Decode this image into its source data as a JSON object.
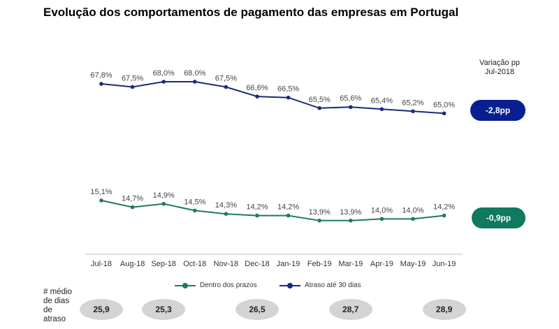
{
  "title": "Evolução dos comportamentos de pagamento das empresas em Portugal",
  "variacao": {
    "line1": "Variação pp",
    "line2": "Jul-2018"
  },
  "chart_data": {
    "type": "line",
    "categories": [
      "Jul-18",
      "Aug-18",
      "Sep-18",
      "Oct-18",
      "Nov-18",
      "Dec-18",
      "Jan-19",
      "Feb-19",
      "Mar-19",
      "Apr-19",
      "May-19",
      "Jun-19"
    ],
    "series": [
      {
        "name": "Atraso até 30 dias",
        "color": "#1b2a7a",
        "values": [
          67.8,
          67.5,
          68.0,
          68.0,
          67.5,
          66.6,
          66.5,
          65.5,
          65.6,
          65.4,
          65.2,
          65.0
        ],
        "labels": [
          "67,8%",
          "67,5%",
          "68,0%",
          "68,0%",
          "67,5%",
          "66,6%",
          "66,5%",
          "65,5%",
          "65,6%",
          "65,4%",
          "65,2%",
          "65,0%"
        ],
        "change": "-2,8pp"
      },
      {
        "name": "Dentro dos prazos",
        "color": "#1e7a62",
        "values": [
          15.1,
          14.7,
          14.9,
          14.5,
          14.3,
          14.2,
          14.2,
          13.9,
          13.9,
          14.0,
          14.0,
          14.2
        ],
        "labels": [
          "15,1%",
          "14,7%",
          "14,9%",
          "14,5%",
          "14,3%",
          "14,2%",
          "14,2%",
          "13,9%",
          "13,9%",
          "14,0%",
          "14,0%",
          "14,2%"
        ],
        "change": "-0,9pp"
      }
    ],
    "legend_order": [
      "Dentro dos prazos",
      "Atraso até 30 dias"
    ],
    "legend_position": "bottom"
  },
  "days_row": {
    "label_lines": [
      "# médio",
      "de dias",
      "de",
      "atraso"
    ],
    "values": [
      {
        "category": "Jul-18",
        "value": "25,9"
      },
      {
        "category": "Sep-18",
        "value": "25,3"
      },
      {
        "category": "Dec-18",
        "value": "26,5"
      },
      {
        "category": "Mar-19",
        "value": "28,7"
      },
      {
        "category": "Jun-19",
        "value": "28,9"
      }
    ]
  }
}
